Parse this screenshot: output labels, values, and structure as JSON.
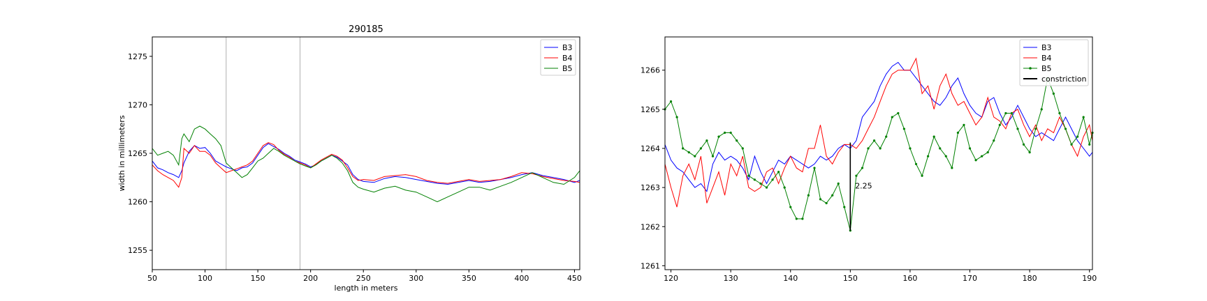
{
  "chart_data": [
    {
      "type": "line",
      "title": "290185",
      "xlabel": "length in meters",
      "ylabel": "width in millimeters",
      "xlim": [
        50,
        455
      ],
      "ylim": [
        1253,
        1277
      ],
      "xticks": [
        50,
        100,
        150,
        200,
        250,
        300,
        350,
        400,
        450
      ],
      "yticks": [
        1255,
        1260,
        1265,
        1270,
        1275
      ],
      "vlines": [
        120,
        190
      ],
      "grid": false,
      "legend_position": "top-right",
      "series": [
        {
          "name": "B3",
          "color": "#0000ff",
          "x": [
            50,
            55,
            60,
            65,
            70,
            75,
            78,
            80,
            85,
            90,
            95,
            100,
            105,
            110,
            115,
            120,
            125,
            130,
            135,
            140,
            145,
            150,
            155,
            160,
            165,
            170,
            175,
            180,
            185,
            190,
            195,
            200,
            205,
            210,
            215,
            220,
            225,
            230,
            235,
            240,
            245,
            250,
            260,
            270,
            280,
            290,
            300,
            310,
            320,
            330,
            340,
            350,
            360,
            370,
            380,
            390,
            400,
            410,
            420,
            430,
            440,
            450,
            455
          ],
          "y": [
            1264.2,
            1263.5,
            1263.3,
            1263.0,
            1262.8,
            1262.5,
            1263.2,
            1264.0,
            1265.2,
            1265.8,
            1265.5,
            1265.6,
            1265.0,
            1264.2,
            1263.9,
            1263.6,
            1263.4,
            1263.2,
            1263.5,
            1263.6,
            1264.0,
            1264.8,
            1265.6,
            1266.0,
            1265.7,
            1265.4,
            1265.0,
            1264.7,
            1264.3,
            1264.1,
            1263.9,
            1263.6,
            1263.8,
            1264.2,
            1264.5,
            1264.8,
            1264.6,
            1264.2,
            1263.8,
            1262.8,
            1262.3,
            1262.1,
            1262.0,
            1262.4,
            1262.6,
            1262.5,
            1262.3,
            1262.1,
            1261.9,
            1261.8,
            1262.0,
            1262.2,
            1262.0,
            1262.1,
            1262.3,
            1262.5,
            1262.8,
            1263.0,
            1262.7,
            1262.5,
            1262.3,
            1262.0,
            1262.2
          ]
        },
        {
          "name": "B4",
          "color": "#ff0000",
          "x": [
            50,
            55,
            60,
            65,
            70,
            75,
            78,
            80,
            85,
            90,
            95,
            100,
            105,
            110,
            115,
            120,
            125,
            130,
            135,
            140,
            145,
            150,
            155,
            160,
            165,
            170,
            175,
            180,
            185,
            190,
            195,
            200,
            205,
            210,
            215,
            220,
            225,
            230,
            235,
            240,
            245,
            250,
            260,
            270,
            280,
            290,
            300,
            310,
            320,
            330,
            340,
            350,
            360,
            370,
            380,
            390,
            400,
            410,
            420,
            430,
            440,
            450,
            455
          ],
          "y": [
            1263.8,
            1263.2,
            1262.8,
            1262.5,
            1262.2,
            1261.5,
            1262.5,
            1265.5,
            1265.0,
            1265.8,
            1265.2,
            1265.2,
            1264.8,
            1264.0,
            1263.5,
            1263.0,
            1263.2,
            1263.4,
            1263.6,
            1263.8,
            1264.2,
            1265.0,
            1265.8,
            1266.1,
            1265.9,
            1265.3,
            1264.9,
            1264.6,
            1264.2,
            1264.0,
            1263.8,
            1263.5,
            1263.9,
            1264.3,
            1264.6,
            1264.9,
            1264.7,
            1264.3,
            1263.5,
            1262.6,
            1262.2,
            1262.3,
            1262.2,
            1262.6,
            1262.7,
            1262.8,
            1262.6,
            1262.2,
            1262.0,
            1261.9,
            1262.1,
            1262.3,
            1262.1,
            1262.2,
            1262.3,
            1262.6,
            1263.0,
            1262.9,
            1262.6,
            1262.4,
            1262.2,
            1262.1,
            1262.0
          ]
        },
        {
          "name": "B5",
          "color": "#008000",
          "x": [
            50,
            55,
            60,
            65,
            70,
            75,
            78,
            80,
            85,
            90,
            95,
            100,
            105,
            110,
            115,
            120,
            125,
            130,
            135,
            140,
            145,
            150,
            155,
            160,
            165,
            170,
            175,
            180,
            185,
            190,
            195,
            200,
            205,
            210,
            215,
            220,
            225,
            230,
            235,
            240,
            245,
            250,
            260,
            270,
            280,
            290,
            300,
            310,
            320,
            330,
            340,
            350,
            360,
            370,
            380,
            390,
            400,
            410,
            420,
            430,
            440,
            450,
            455
          ],
          "y": [
            1265.5,
            1264.8,
            1265.0,
            1265.2,
            1264.8,
            1263.8,
            1266.5,
            1267.0,
            1266.2,
            1267.5,
            1267.8,
            1267.5,
            1267.0,
            1266.5,
            1265.8,
            1264.0,
            1263.5,
            1263.0,
            1262.5,
            1262.8,
            1263.5,
            1264.2,
            1264.5,
            1265.0,
            1265.5,
            1265.2,
            1264.8,
            1264.5,
            1264.2,
            1263.9,
            1263.7,
            1263.5,
            1263.8,
            1264.2,
            1264.5,
            1264.8,
            1264.5,
            1264.0,
            1263.2,
            1262.0,
            1261.5,
            1261.3,
            1261.0,
            1261.4,
            1261.6,
            1261.2,
            1261.0,
            1260.5,
            1260.0,
            1260.5,
            1261.0,
            1261.5,
            1261.5,
            1261.2,
            1261.6,
            1262.0,
            1262.5,
            1263.0,
            1262.5,
            1262.0,
            1261.8,
            1262.5,
            1263.2
          ]
        }
      ]
    },
    {
      "type": "line",
      "title": "",
      "xlabel": "",
      "ylabel": "",
      "xlim": [
        119,
        190.5
      ],
      "ylim": [
        1260.9,
        1266.85
      ],
      "xticks": [
        120,
        130,
        140,
        150,
        160,
        170,
        180,
        190
      ],
      "yticks": [
        1261,
        1262,
        1263,
        1264,
        1265,
        1266
      ],
      "grid": false,
      "legend_position": "top-right",
      "annotations": [
        {
          "text": "2.25",
          "x": 150.8,
          "y": 1263.05
        }
      ],
      "series": [
        {
          "name": "B3",
          "color": "#0000ff",
          "x": [
            119,
            120,
            121,
            122,
            123,
            124,
            125,
            126,
            127,
            128,
            129,
            130,
            131,
            132,
            133,
            134,
            135,
            136,
            137,
            138,
            139,
            140,
            141,
            142,
            143,
            144,
            145,
            146,
            147,
            148,
            149,
            150,
            151,
            152,
            153,
            154,
            155,
            156,
            157,
            158,
            159,
            160,
            161,
            162,
            163,
            164,
            165,
            166,
            167,
            168,
            169,
            170,
            171,
            172,
            173,
            174,
            175,
            176,
            177,
            178,
            179,
            180,
            181,
            182,
            183,
            184,
            185,
            186,
            187,
            188,
            189,
            190,
            190.5
          ],
          "y": [
            1264.1,
            1263.7,
            1263.5,
            1263.4,
            1263.2,
            1263.0,
            1263.1,
            1262.9,
            1263.6,
            1263.9,
            1263.7,
            1263.8,
            1263.7,
            1263.5,
            1263.2,
            1263.8,
            1263.4,
            1263.1,
            1263.4,
            1263.7,
            1263.6,
            1263.8,
            1263.7,
            1263.6,
            1263.5,
            1263.6,
            1263.8,
            1263.7,
            1263.8,
            1264.0,
            1264.1,
            1264.0,
            1264.2,
            1264.8,
            1265.0,
            1265.2,
            1265.6,
            1265.9,
            1266.1,
            1266.2,
            1266.0,
            1266.0,
            1265.8,
            1265.6,
            1265.4,
            1265.2,
            1265.1,
            1265.3,
            1265.6,
            1265.8,
            1265.4,
            1265.1,
            1264.9,
            1264.8,
            1265.2,
            1265.3,
            1264.9,
            1264.6,
            1264.8,
            1265.1,
            1264.8,
            1264.5,
            1264.3,
            1264.4,
            1264.3,
            1264.2,
            1264.5,
            1264.8,
            1264.5,
            1264.2,
            1264.0,
            1263.8,
            1263.9
          ]
        },
        {
          "name": "B4",
          "color": "#ff0000",
          "x": [
            119,
            120,
            121,
            122,
            123,
            124,
            125,
            126,
            127,
            128,
            129,
            130,
            131,
            132,
            133,
            134,
            135,
            136,
            137,
            138,
            139,
            140,
            141,
            142,
            143,
            144,
            145,
            146,
            147,
            148,
            149,
            150,
            151,
            152,
            153,
            154,
            155,
            156,
            157,
            158,
            159,
            160,
            161,
            162,
            163,
            164,
            165,
            166,
            167,
            168,
            169,
            170,
            171,
            172,
            173,
            174,
            175,
            176,
            177,
            178,
            179,
            180,
            181,
            182,
            183,
            184,
            185,
            186,
            187,
            188,
            189,
            190,
            190.5
          ],
          "y": [
            1263.6,
            1263.0,
            1262.5,
            1263.3,
            1263.6,
            1263.2,
            1263.8,
            1262.6,
            1263.0,
            1263.4,
            1262.8,
            1263.6,
            1263.3,
            1263.8,
            1263.0,
            1262.9,
            1263.0,
            1263.4,
            1263.5,
            1263.1,
            1263.5,
            1263.8,
            1263.5,
            1263.4,
            1264.0,
            1264.0,
            1264.6,
            1263.8,
            1263.6,
            1263.9,
            1264.1,
            1264.1,
            1264.0,
            1264.2,
            1264.5,
            1264.8,
            1265.2,
            1265.6,
            1265.9,
            1266.0,
            1266.0,
            1266.0,
            1266.3,
            1265.4,
            1265.6,
            1265.0,
            1265.6,
            1265.9,
            1265.4,
            1265.1,
            1265.2,
            1264.9,
            1264.6,
            1264.8,
            1265.3,
            1264.8,
            1264.7,
            1264.5,
            1264.9,
            1265.0,
            1264.6,
            1264.3,
            1264.6,
            1264.2,
            1264.5,
            1264.4,
            1264.8,
            1264.5,
            1264.1,
            1263.8,
            1264.3,
            1264.6,
            1264.2
          ]
        },
        {
          "name": "B5",
          "color": "#008000",
          "x": [
            119,
            120,
            121,
            122,
            123,
            124,
            125,
            126,
            127,
            128,
            129,
            130,
            131,
            132,
            133,
            134,
            135,
            136,
            137,
            138,
            139,
            140,
            141,
            142,
            143,
            144,
            145,
            146,
            147,
            148,
            149,
            150,
            151,
            152,
            153,
            154,
            155,
            156,
            157,
            158,
            159,
            160,
            161,
            162,
            163,
            164,
            165,
            166,
            167,
            168,
            169,
            170,
            171,
            172,
            173,
            174,
            175,
            176,
            177,
            178,
            179,
            180,
            181,
            182,
            183,
            184,
            185,
            186,
            187,
            188,
            189,
            190,
            190.5
          ],
          "y": [
            1265.0,
            1265.2,
            1264.8,
            1264.0,
            1263.9,
            1263.8,
            1264.0,
            1264.2,
            1263.8,
            1264.3,
            1264.4,
            1264.4,
            1264.2,
            1264.0,
            1263.3,
            1263.2,
            1263.1,
            1263.0,
            1263.2,
            1263.4,
            1263.0,
            1262.5,
            1262.2,
            1262.2,
            1262.8,
            1263.5,
            1262.7,
            1262.6,
            1262.8,
            1263.1,
            1262.5,
            1261.9,
            1263.3,
            1263.5,
            1264.0,
            1264.2,
            1264.0,
            1264.3,
            1264.8,
            1264.9,
            1264.5,
            1264.0,
            1263.6,
            1263.3,
            1263.8,
            1264.3,
            1264.0,
            1263.8,
            1263.5,
            1264.4,
            1264.6,
            1264.0,
            1263.7,
            1263.8,
            1263.9,
            1264.2,
            1264.6,
            1264.9,
            1264.9,
            1264.5,
            1264.1,
            1263.9,
            1264.5,
            1265.0,
            1265.8,
            1265.4,
            1264.9,
            1264.5,
            1264.1,
            1264.3,
            1264.8,
            1264.1,
            1264.4
          ]
        },
        {
          "name": "constriction",
          "color": "#000000",
          "x": [
            150,
            150
          ],
          "y": [
            1264.15,
            1261.9
          ]
        }
      ]
    }
  ]
}
